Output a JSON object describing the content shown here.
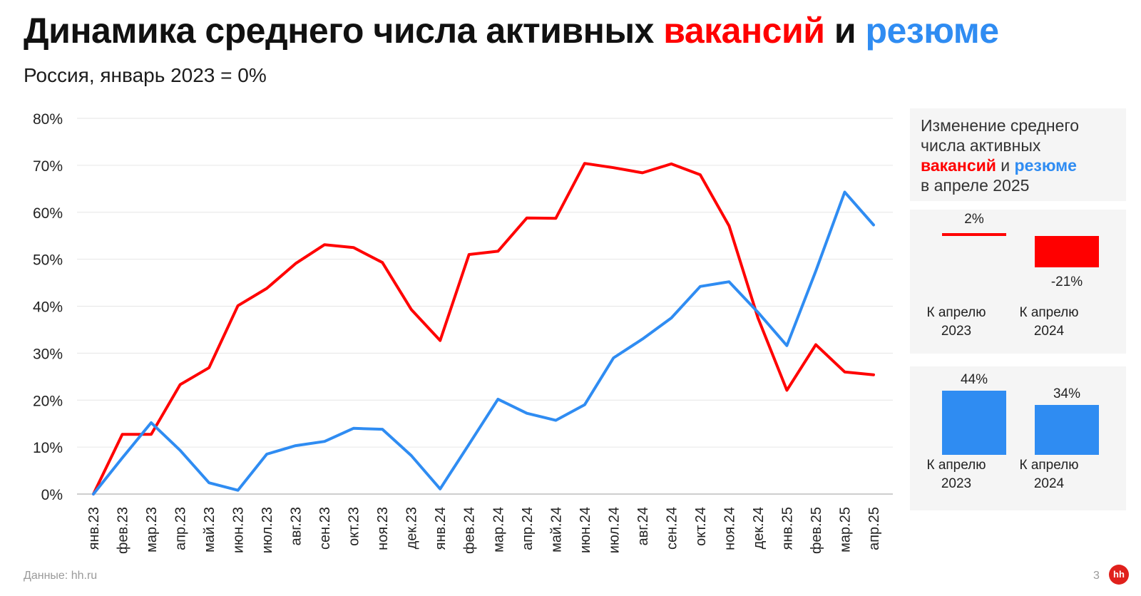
{
  "header": {
    "title_part1": "Динамика среднего числа активных ",
    "title_vacancies": "вакансий",
    "title_and": " и ",
    "title_resumes": "резюме",
    "subtitle": "Россия, январь 2023 = 0%"
  },
  "colors": {
    "vacancies": "#ff0000",
    "resumes": "#2f8cf2",
    "grid": "#e6e6e6",
    "panel": "#f5f5f5"
  },
  "chart_data": {
    "type": "line",
    "title": "Динамика среднего числа активных вакансий и резюме",
    "subtitle": "Россия, январь 2023 = 0%",
    "categories": [
      "янв.23",
      "фев.23",
      "мар.23",
      "апр.23",
      "май.23",
      "июн.23",
      "июл.23",
      "авг.23",
      "сен.23",
      "окт.23",
      "ноя.23",
      "дек.23",
      "янв.24",
      "фев.24",
      "мар.24",
      "апр.24",
      "май.24",
      "июн.24",
      "июл.24",
      "авг.24",
      "сен.24",
      "окт.24",
      "ноя.24",
      "дек.24",
      "янв.25",
      "фев.25",
      "мар.25",
      "апр.25"
    ],
    "series": [
      {
        "name": "вакансий",
        "color": "#ff0000",
        "values": [
          0,
          12.7,
          12.7,
          23.3,
          26.9,
          40.1,
          43.8,
          49.1,
          53.1,
          52.5,
          49.3,
          39.3,
          32.7,
          51.0,
          51.7,
          58.8,
          58.7,
          70.4,
          69.5,
          68.4,
          70.3,
          68.0,
          57.1,
          37.5,
          22.1,
          31.8,
          26.0,
          25.4
        ]
      },
      {
        "name": "резюме",
        "color": "#2f8cf2",
        "values": [
          0,
          7.7,
          15.2,
          9.3,
          2.4,
          0.8,
          8.5,
          10.3,
          11.2,
          14.0,
          13.8,
          8.2,
          1.1,
          10.6,
          20.2,
          17.2,
          15.7,
          19.0,
          29.0,
          33.0,
          37.5,
          44.2,
          45.2,
          38.7,
          31.6,
          47.5,
          64.3,
          57.3
        ]
      }
    ],
    "y_ticks": [
      "0%",
      "10%",
      "20%",
      "30%",
      "40%",
      "50%",
      "60%",
      "70%",
      "80%"
    ],
    "ylim": [
      0,
      80
    ],
    "grid": true
  },
  "side": {
    "legend_line1": "Изменение среднего",
    "legend_line2": "числа активных",
    "legend_vacancies": "вакансий",
    "legend_and": " и ",
    "legend_resumes": "резюме",
    "legend_line4": "в апреле 2025",
    "vacancies_panel": {
      "bars": [
        {
          "value": 2,
          "label": "2%",
          "caption1": "К апрелю",
          "caption2": "2023"
        },
        {
          "value": -21,
          "label": "-21%",
          "caption1": "К апрелю",
          "caption2": "2024"
        }
      ]
    },
    "resumes_panel": {
      "bars": [
        {
          "value": 44,
          "label": "44%",
          "caption1": "К апрелю",
          "caption2": "2023"
        },
        {
          "value": 34,
          "label": "34%",
          "caption1": "К апрелю",
          "caption2": "2024"
        }
      ]
    }
  },
  "footer": {
    "source": "Данные: hh.ru",
    "page": "3",
    "logo": "hh"
  }
}
